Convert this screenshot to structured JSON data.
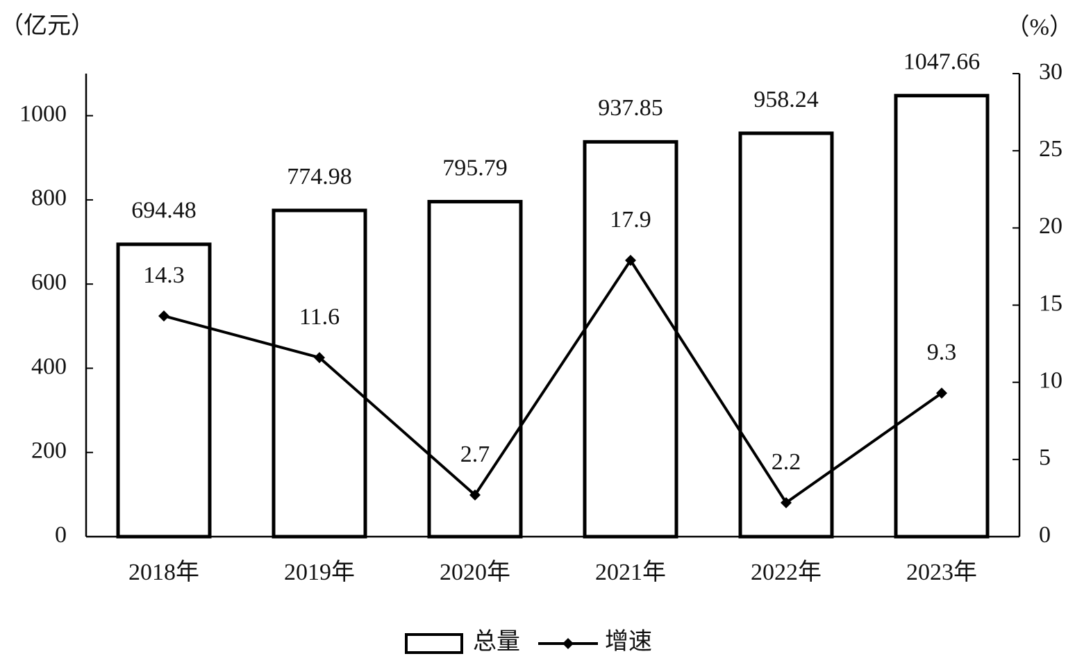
{
  "chart_data": {
    "type": "bar",
    "y_label": "（亿元）",
    "y2_label": "（%）",
    "categories": [
      "2018年",
      "2019年",
      "2020年",
      "2021年",
      "2022年",
      "2023年"
    ],
    "series": [
      {
        "name": "总量",
        "type": "bar",
        "color": "#000000",
        "values": [
          694.48,
          774.98,
          795.79,
          937.85,
          958.24,
          1047.66
        ]
      },
      {
        "name": "增速",
        "type": "line",
        "axis": "y2",
        "color": "#000000",
        "values": [
          14.3,
          11.6,
          2.7,
          17.9,
          2.2,
          9.3
        ]
      }
    ],
    "ylim": [
      0,
      1100
    ],
    "yticks": [
      0,
      200,
      400,
      600,
      800,
      1000
    ],
    "y2lim": [
      0,
      30
    ],
    "y2ticks": [
      0,
      5,
      10,
      15,
      20,
      25,
      30
    ],
    "legend": "bottom"
  }
}
